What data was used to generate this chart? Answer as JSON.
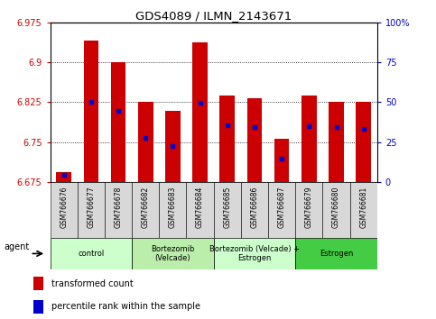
{
  "title": "GDS4089 / ILMN_2143671",
  "samples": [
    "GSM766676",
    "GSM766677",
    "GSM766678",
    "GSM766682",
    "GSM766683",
    "GSM766684",
    "GSM766685",
    "GSM766686",
    "GSM766687",
    "GSM766679",
    "GSM766680",
    "GSM766681"
  ],
  "bar_tops": [
    6.693,
    6.94,
    6.9,
    6.825,
    6.808,
    6.937,
    6.838,
    6.832,
    6.756,
    6.838,
    6.826,
    6.826
  ],
  "blue_dots": [
    6.688,
    6.825,
    6.808,
    6.758,
    6.742,
    6.823,
    6.782,
    6.778,
    6.718,
    6.78,
    6.778,
    6.775
  ],
  "ymin": 6.675,
  "ymax": 6.975,
  "yticks_left": [
    6.675,
    6.75,
    6.825,
    6.9,
    6.975
  ],
  "yticks_right_vals": [
    0,
    25,
    50,
    75,
    100
  ],
  "bar_color": "#cc0000",
  "dot_color": "#0000cc",
  "bar_width": 0.55,
  "group_info": [
    {
      "indices": [
        0,
        1,
        2
      ],
      "label": "control",
      "color": "#ccffcc"
    },
    {
      "indices": [
        3,
        4,
        5
      ],
      "label": "Bortezomib\n(Velcade)",
      "color": "#bbeeaa"
    },
    {
      "indices": [
        6,
        7,
        8
      ],
      "label": "Bortezomib (Velcade) +\nEstrogen",
      "color": "#ccffcc"
    },
    {
      "indices": [
        9,
        10,
        11
      ],
      "label": "Estrogen",
      "color": "#44cc44"
    }
  ],
  "legend_items": [
    {
      "label": "transformed count",
      "color": "#cc0000"
    },
    {
      "label": "percentile rank within the sample",
      "color": "#0000cc"
    }
  ],
  "right_axis_color": "#0000cc",
  "left_axis_color": "#cc0000",
  "tick_label_bg": "#d8d8d8"
}
